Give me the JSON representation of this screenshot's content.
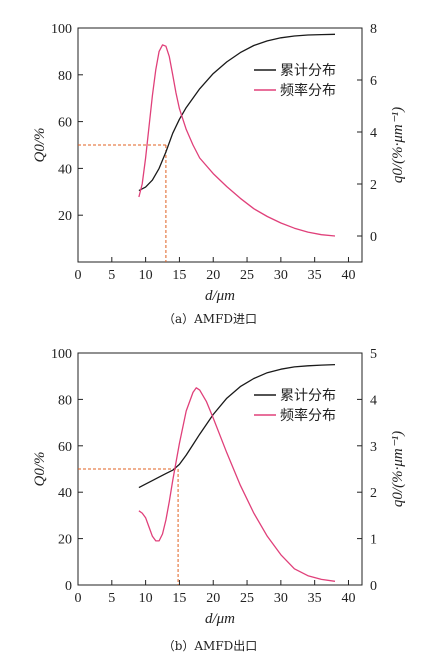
{
  "chart_data": [
    {
      "type": "line",
      "caption": "（a）AMFD进口",
      "xlabel": "d/μm",
      "ylabel_left": "Q0/%",
      "ylabel_right": "q0/(%·μm⁻¹)",
      "xlim": [
        0,
        42
      ],
      "ylim_left": [
        0,
        100
      ],
      "ylim_right": [
        -1,
        8
      ],
      "xticks": [
        0,
        5,
        10,
        15,
        20,
        25,
        30,
        35,
        40
      ],
      "yticks_left": [
        20,
        40,
        60,
        80,
        100
      ],
      "yticks_right": [
        0,
        2,
        4,
        6,
        8
      ],
      "legend_position": "top-right",
      "reference_line": {
        "y_left": 50,
        "x": 13
      },
      "series": [
        {
          "name": "累计分布",
          "axis": "left",
          "color": "#1a1a1a",
          "x": [
            9,
            10,
            11,
            12,
            13,
            14,
            15,
            16,
            18,
            20,
            22,
            24,
            26,
            28,
            30,
            32,
            34,
            36,
            38
          ],
          "y": [
            30.5,
            32,
            35,
            40,
            47,
            55,
            61,
            66,
            74,
            80.5,
            85.5,
            89.5,
            92.5,
            94.5,
            95.8,
            96.6,
            97,
            97.2,
            97.3
          ]
        },
        {
          "name": "频率分布",
          "axis": "right",
          "color": "#e0407a",
          "x": [
            9,
            9.5,
            10,
            10.5,
            11,
            11.5,
            12,
            12.5,
            13,
            13.5,
            14,
            14.5,
            15,
            16,
            17,
            18,
            20,
            22,
            24,
            26,
            28,
            30,
            32,
            34,
            36,
            38
          ],
          "y": [
            1.5,
            2,
            3,
            4.2,
            5.4,
            6.4,
            7.1,
            7.35,
            7.3,
            6.9,
            6.2,
            5.5,
            4.9,
            4.1,
            3.5,
            3.0,
            2.4,
            1.9,
            1.45,
            1.05,
            0.75,
            0.5,
            0.3,
            0.15,
            0.05,
            0
          ]
        }
      ]
    },
    {
      "type": "line",
      "caption": "（b）AMFD出口",
      "xlabel": "d/μm",
      "ylabel_left": "Q0/%",
      "ylabel_right": "q0/(%·μm⁻¹)",
      "xlim": [
        0,
        42
      ],
      "ylim_left": [
        0,
        100
      ],
      "ylim_right": [
        0,
        5
      ],
      "xticks": [
        0,
        5,
        10,
        15,
        20,
        25,
        30,
        35,
        40
      ],
      "yticks_left": [
        0,
        20,
        40,
        60,
        80,
        100
      ],
      "yticks_right": [
        0,
        1,
        2,
        3,
        4,
        5
      ],
      "legend_position": "top-right",
      "reference_line": {
        "y_left": 50,
        "x": 14.8
      },
      "series": [
        {
          "name": "累计分布",
          "axis": "left",
          "color": "#1a1a1a",
          "x": [
            9,
            10,
            11,
            12,
            13,
            14,
            15,
            16,
            17,
            18,
            20,
            22,
            24,
            26,
            28,
            30,
            32,
            34,
            36,
            38
          ],
          "y": [
            42,
            43.5,
            45,
            46.5,
            48,
            49.5,
            52,
            56,
            60.5,
            65,
            73.5,
            80.5,
            85.5,
            89,
            91.5,
            93,
            94,
            94.5,
            94.8,
            95
          ]
        },
        {
          "name": "频率分布",
          "axis": "right",
          "color": "#e0407a",
          "x": [
            9,
            9.5,
            10,
            10.5,
            11,
            11.5,
            12,
            12.5,
            13,
            13.5,
            14,
            15,
            16,
            17,
            17.5,
            18,
            19,
            20,
            22,
            24,
            26,
            28,
            30,
            32,
            34,
            36,
            38
          ],
          "y": [
            1.6,
            1.55,
            1.45,
            1.25,
            1.05,
            0.95,
            0.95,
            1.1,
            1.4,
            1.8,
            2.25,
            3.05,
            3.75,
            4.15,
            4.25,
            4.2,
            3.95,
            3.6,
            2.85,
            2.15,
            1.55,
            1.05,
            0.65,
            0.35,
            0.2,
            0.12,
            0.08
          ]
        }
      ]
    }
  ]
}
